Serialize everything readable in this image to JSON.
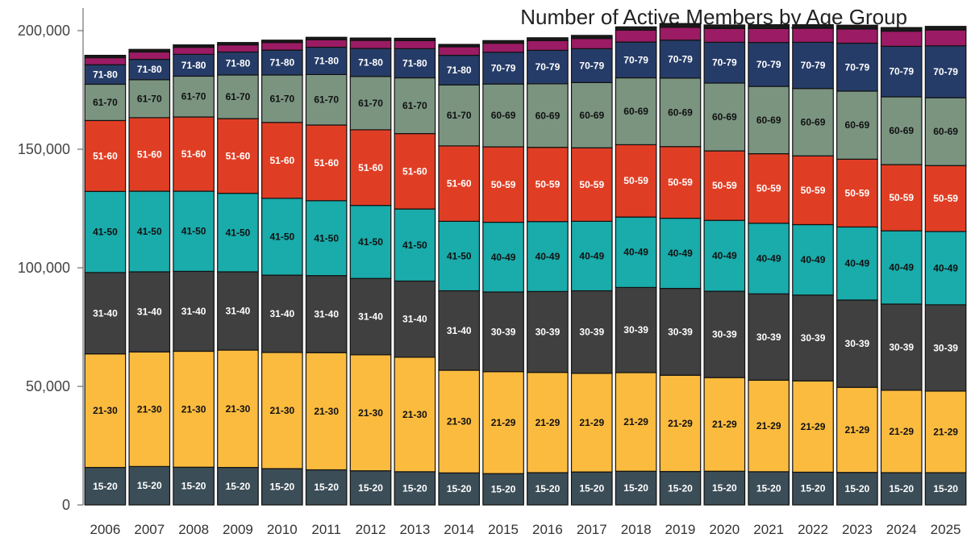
{
  "chart_data": {
    "type": "bar",
    "stacked": true,
    "title": "Number of Active Members by Age Group",
    "ylim": [
      0,
      200000
    ],
    "yticks": [
      0,
      50000,
      100000,
      150000,
      200000
    ],
    "ytick_labels": [
      "0",
      "50,000",
      "100,000",
      "150,000",
      "200,000"
    ],
    "grid": false,
    "categories": [
      "2006",
      "2007",
      "2008",
      "2009",
      "2010",
      "2011",
      "2012",
      "2013",
      "2014",
      "2015",
      "2016",
      "2017",
      "2018",
      "2019",
      "2020",
      "2021",
      "2022",
      "2023",
      "2024",
      "2025"
    ],
    "colors": [
      "#3b4d57",
      "#fbbb3f",
      "#404040",
      "#1aabab",
      "#e03e24",
      "#7a9480",
      "#263c68",
      "#9b1b64",
      "#1a1a1a"
    ],
    "segment_labels": [
      [
        "15-20",
        "15-20",
        "15-20",
        "15-20",
        "15-20",
        "15-20",
        "15-20",
        "15-20",
        "15-20",
        "15-20",
        "15-20",
        "15-20",
        "15-20",
        "15-20",
        "15-20",
        "15-20",
        "15-20",
        "15-20",
        "15-20",
        "15-20"
      ],
      [
        "21-30",
        "21-30",
        "21-30",
        "21-30",
        "21-30",
        "21-30",
        "21-30",
        "21-30",
        "21-30",
        "21-29",
        "21-29",
        "21-29",
        "21-29",
        "21-29",
        "21-29",
        "21-29",
        "21-29",
        "21-29",
        "21-29",
        "21-29"
      ],
      [
        "31-40",
        "31-40",
        "31-40",
        "31-40",
        "31-40",
        "31-40",
        "31-40",
        "31-40",
        "31-40",
        "30-39",
        "30-39",
        "30-39",
        "30-39",
        "30-39",
        "30-39",
        "30-39",
        "30-39",
        "30-39",
        "30-39",
        "30-39"
      ],
      [
        "41-50",
        "41-50",
        "41-50",
        "41-50",
        "41-50",
        "41-50",
        "41-50",
        "41-50",
        "41-50",
        "40-49",
        "40-49",
        "40-49",
        "40-49",
        "40-49",
        "40-49",
        "40-49",
        "40-49",
        "40-49",
        "40-49",
        "40-49"
      ],
      [
        "51-60",
        "51-60",
        "51-60",
        "51-60",
        "51-60",
        "51-60",
        "51-60",
        "51-60",
        "51-60",
        "50-59",
        "50-59",
        "50-59",
        "50-59",
        "50-59",
        "50-59",
        "50-59",
        "50-59",
        "50-59",
        "50-59",
        "50-59"
      ],
      [
        "61-70",
        "61-70",
        "61-70",
        "61-70",
        "61-70",
        "61-70",
        "61-70",
        "61-70",
        "61-70",
        "60-69",
        "60-69",
        "60-69",
        "60-69",
        "60-69",
        "60-69",
        "60-69",
        "60-69",
        "60-69",
        "60-69",
        "60-69"
      ],
      [
        "71-80",
        "71-80",
        "71-80",
        "71-80",
        "71-80",
        "71-80",
        "71-80",
        "71-80",
        "71-80",
        "70-79",
        "70-79",
        "70-79",
        "70-79",
        "70-79",
        "70-79",
        "70-79",
        "70-79",
        "70-79",
        "70-79",
        "70-79"
      ],
      [
        "",
        "",
        "",
        "",
        "",
        "",
        "",
        "",
        "",
        "",
        "",
        "",
        "",
        "",
        "",
        "",
        "",
        "",
        "",
        ""
      ],
      [
        "",
        "",
        "",
        "",
        "",
        "",
        "",
        "",
        "",
        "",
        "",
        "",
        "",
        "",
        "",
        "",
        "",
        "",
        "",
        ""
      ]
    ],
    "series": [
      {
        "values": [
          15800,
          16200,
          15900,
          15800,
          15300,
          14800,
          14400,
          14000,
          13500,
          13200,
          13600,
          13900,
          14200,
          14100,
          14200,
          14000,
          13800,
          13700,
          13600,
          13600
        ]
      },
      {
        "values": [
          47900,
          48300,
          48900,
          49500,
          49000,
          49400,
          48900,
          48300,
          43300,
          43000,
          42300,
          41600,
          41600,
          40600,
          39500,
          38600,
          38500,
          35900,
          34800,
          34400
        ]
      },
      {
        "values": [
          34300,
          33800,
          33700,
          33000,
          32600,
          32500,
          32200,
          32100,
          33500,
          33600,
          34100,
          34800,
          35900,
          36600,
          36400,
          36400,
          36200,
          36800,
          36300,
          36400
        ]
      },
      {
        "values": [
          34200,
          34000,
          33800,
          33100,
          32400,
          31600,
          30800,
          30400,
          29300,
          29400,
          29500,
          29300,
          29700,
          29600,
          29900,
          29800,
          29700,
          30800,
          30900,
          30900
        ]
      },
      {
        "values": [
          29900,
          31000,
          31300,
          31500,
          32000,
          31900,
          31900,
          31800,
          31800,
          31800,
          31300,
          31000,
          30500,
          30200,
          29300,
          29300,
          29000,
          28600,
          27900,
          27800
        ]
      },
      {
        "values": [
          15300,
          16000,
          17200,
          18400,
          20000,
          21300,
          22500,
          23500,
          25700,
          26500,
          26800,
          27500,
          28200,
          28900,
          28600,
          28400,
          28400,
          28700,
          28600,
          28600
        ]
      },
      {
        "values": [
          8200,
          8600,
          9200,
          9700,
          10500,
          11500,
          11800,
          12300,
          12500,
          13400,
          14100,
          14300,
          15100,
          16000,
          17200,
          18500,
          19500,
          20200,
          21300,
          21900
        ]
      },
      {
        "values": [
          3000,
          3100,
          3000,
          3000,
          3200,
          3200,
          3400,
          3400,
          3600,
          3800,
          4100,
          4300,
          5000,
          5400,
          5800,
          5900,
          5900,
          6000,
          6400,
          6700
        ]
      },
      {
        "values": [
          1000,
          1100,
          1000,
          1000,
          1000,
          1000,
          1000,
          1000,
          1000,
          1100,
          1200,
          1300,
          1400,
          1600,
          1500,
          1600,
          1500,
          1600,
          1500,
          1500
        ]
      }
    ]
  }
}
